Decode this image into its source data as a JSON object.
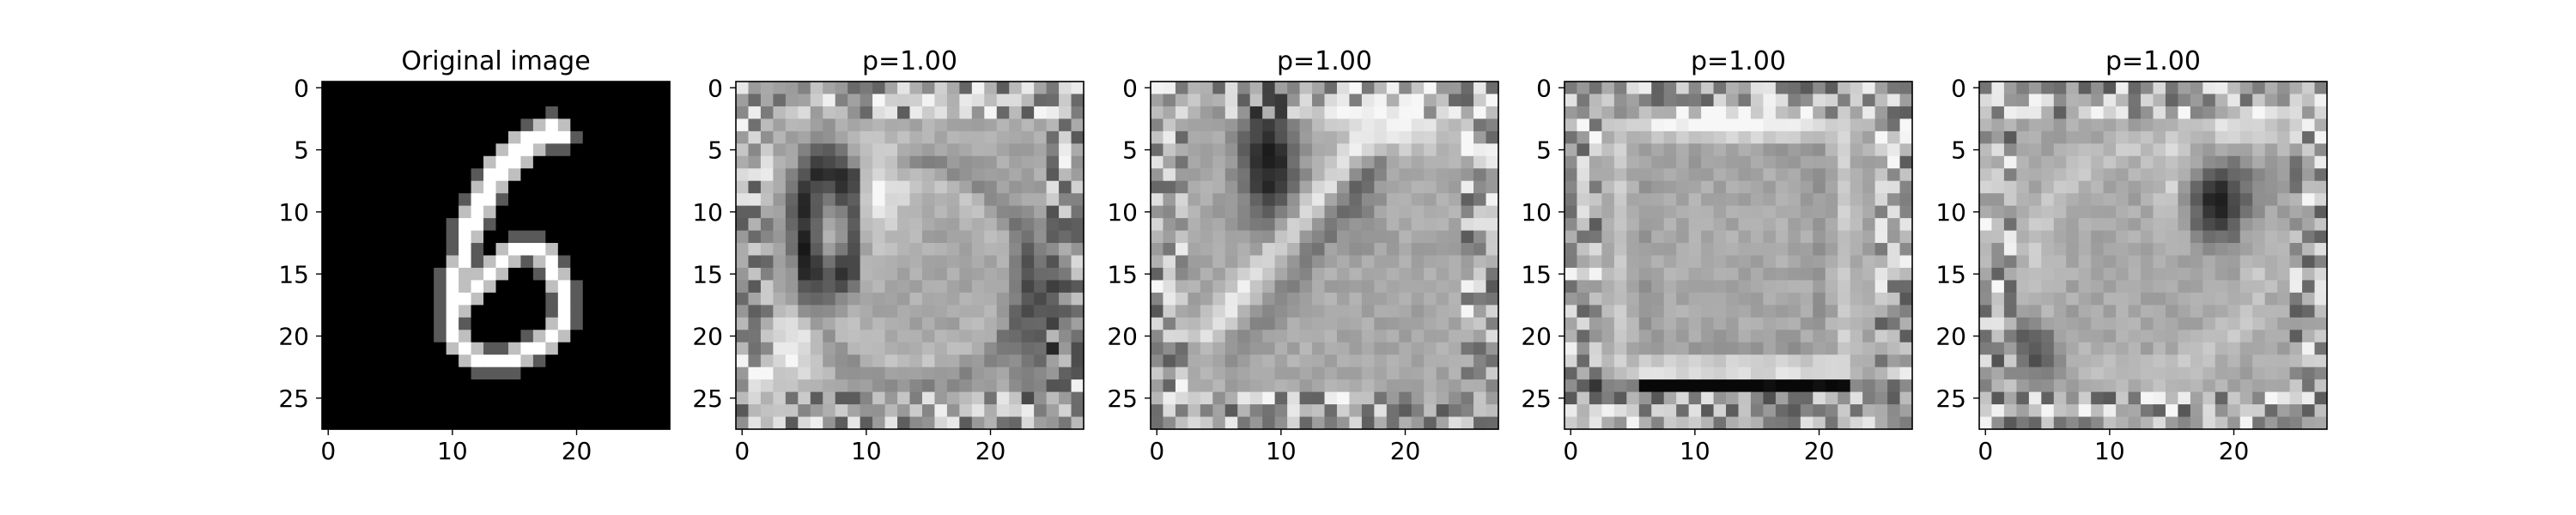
{
  "figure": {
    "background": "#ffffff"
  },
  "chart_data": [
    {
      "type": "heatmap",
      "title": "Original image",
      "colormap": "gray",
      "content": "digit-6",
      "image_shape": [
        28,
        28
      ],
      "xlim": [
        -0.5,
        27.5
      ],
      "ylim": [
        27.5,
        -0.5
      ],
      "xticks": [
        0,
        10,
        20
      ],
      "yticks": [
        0,
        5,
        10,
        15,
        20,
        25
      ]
    },
    {
      "type": "heatmap",
      "title": "p=1.00",
      "colormap": "gray",
      "content": "filter-1",
      "image_shape": [
        28,
        28
      ],
      "xlim": [
        -0.5,
        27.5
      ],
      "ylim": [
        27.5,
        -0.5
      ],
      "xticks": [
        0,
        10,
        20
      ],
      "yticks": [
        0,
        5,
        10,
        15,
        20,
        25
      ]
    },
    {
      "type": "heatmap",
      "title": "p=1.00",
      "colormap": "gray",
      "content": "filter-2",
      "image_shape": [
        28,
        28
      ],
      "xlim": [
        -0.5,
        27.5
      ],
      "ylim": [
        27.5,
        -0.5
      ],
      "xticks": [
        0,
        10,
        20
      ],
      "yticks": [
        0,
        5,
        10,
        15,
        20,
        25
      ]
    },
    {
      "type": "heatmap",
      "title": "p=1.00",
      "colormap": "gray",
      "content": "filter-3",
      "image_shape": [
        28,
        28
      ],
      "xlim": [
        -0.5,
        27.5
      ],
      "ylim": [
        27.5,
        -0.5
      ],
      "xticks": [
        0,
        10,
        20
      ],
      "yticks": [
        0,
        5,
        10,
        15,
        20,
        25
      ]
    },
    {
      "type": "heatmap",
      "title": "p=1.00",
      "colormap": "gray",
      "content": "filter-4",
      "image_shape": [
        28,
        28
      ],
      "xlim": [
        -0.5,
        27.5
      ],
      "ylim": [
        27.5,
        -0.5
      ],
      "xticks": [
        0,
        10,
        20
      ],
      "yticks": [
        0,
        5,
        10,
        15,
        20,
        25
      ]
    }
  ]
}
